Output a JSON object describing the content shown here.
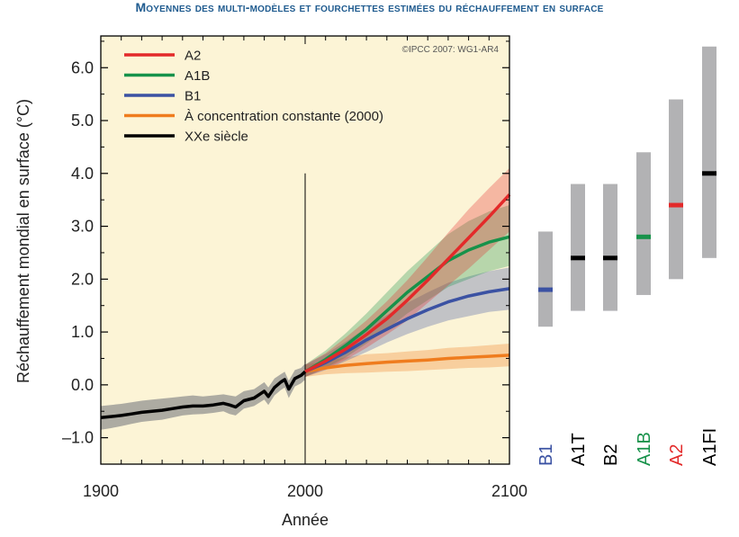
{
  "title": "Moyennes des multi-modèles et fourchettes estimées du réchauffement en surface",
  "copyright": "©IPCC 2007: WG1-AR4",
  "colors": {
    "panel_bg": "#fcf4d6",
    "a2": "#e32a2a",
    "a1b": "#17924a",
    "b1": "#3b52a3",
    "constant": "#ef7c1e",
    "century": "#000000",
    "range_bar": "#b2b2b4"
  },
  "chart_data": [
    {
      "type": "line",
      "title": "",
      "xlabel": "Année",
      "ylabel": "Réchauffement mondial en surface (°C)",
      "xlim": [
        1900,
        2100
      ],
      "ylim": [
        -1.5,
        6.6
      ],
      "xticks": [
        1900,
        2000,
        2100
      ],
      "yticks": [
        -1.0,
        0.0,
        1.0,
        2.0,
        3.0,
        4.0,
        5.0,
        6.0
      ],
      "ytick_labels": [
        "–1.0",
        "0.0",
        "1.0",
        "2.0",
        "3.0",
        "4.0",
        "5.0",
        "6.0"
      ],
      "grid": false,
      "legend_position": "top-left",
      "divider_year": 2000,
      "series": [
        {
          "name": "A2",
          "color": "#e32a2a",
          "x": [
            2000,
            2010,
            2020,
            2030,
            2040,
            2050,
            2060,
            2070,
            2080,
            2090,
            2100
          ],
          "y": [
            0.25,
            0.45,
            0.68,
            0.95,
            1.25,
            1.6,
            1.98,
            2.38,
            2.78,
            3.18,
            3.6
          ],
          "low": [
            0.15,
            0.3,
            0.48,
            0.7,
            0.95,
            1.22,
            1.55,
            1.88,
            2.2,
            2.55,
            2.9
          ],
          "high": [
            0.38,
            0.6,
            0.9,
            1.22,
            1.58,
            1.98,
            2.42,
            2.88,
            3.32,
            3.72,
            4.1
          ]
        },
        {
          "name": "A1B",
          "color": "#17924a",
          "x": [
            2000,
            2010,
            2020,
            2030,
            2040,
            2050,
            2060,
            2070,
            2080,
            2090,
            2100
          ],
          "y": [
            0.25,
            0.48,
            0.75,
            1.05,
            1.4,
            1.75,
            2.05,
            2.35,
            2.55,
            2.7,
            2.8
          ],
          "low": [
            0.15,
            0.32,
            0.52,
            0.78,
            1.05,
            1.35,
            1.6,
            1.85,
            2.0,
            2.15,
            2.25
          ],
          "high": [
            0.38,
            0.65,
            0.98,
            1.35,
            1.75,
            2.15,
            2.5,
            2.85,
            3.1,
            3.28,
            3.4
          ]
        },
        {
          "name": "B1",
          "color": "#3b52a3",
          "x": [
            2000,
            2010,
            2020,
            2030,
            2040,
            2050,
            2060,
            2070,
            2080,
            2090,
            2100
          ],
          "y": [
            0.25,
            0.42,
            0.62,
            0.85,
            1.05,
            1.25,
            1.42,
            1.57,
            1.68,
            1.76,
            1.82
          ],
          "low": [
            0.15,
            0.28,
            0.45,
            0.62,
            0.8,
            0.96,
            1.1,
            1.22,
            1.3,
            1.38,
            1.42
          ],
          "high": [
            0.38,
            0.58,
            0.82,
            1.08,
            1.32,
            1.55,
            1.75,
            1.93,
            2.05,
            2.15,
            2.22
          ]
        },
        {
          "name": "À concentration constante (2000)",
          "color": "#ef7c1e",
          "x": [
            2000,
            2010,
            2020,
            2030,
            2040,
            2050,
            2060,
            2070,
            2080,
            2090,
            2100
          ],
          "y": [
            0.25,
            0.32,
            0.37,
            0.4,
            0.43,
            0.45,
            0.47,
            0.5,
            0.52,
            0.54,
            0.56
          ],
          "low": [
            0.15,
            0.2,
            0.22,
            0.23,
            0.25,
            0.26,
            0.28,
            0.3,
            0.32,
            0.33,
            0.35
          ],
          "high": [
            0.38,
            0.45,
            0.52,
            0.58,
            0.6,
            0.63,
            0.66,
            0.7,
            0.72,
            0.75,
            0.78
          ]
        },
        {
          "name": "XXe siècle",
          "color": "#000000",
          "x": [
            1900,
            1905,
            1910,
            1915,
            1920,
            1925,
            1930,
            1935,
            1940,
            1945,
            1950,
            1955,
            1960,
            1963,
            1966,
            1970,
            1975,
            1980,
            1982,
            1985,
            1988,
            1990,
            1992,
            1995,
            1998,
            2000
          ],
          "y": [
            -0.62,
            -0.6,
            -0.58,
            -0.55,
            -0.52,
            -0.5,
            -0.48,
            -0.45,
            -0.42,
            -0.4,
            -0.4,
            -0.38,
            -0.35,
            -0.38,
            -0.42,
            -0.3,
            -0.25,
            -0.12,
            -0.22,
            -0.05,
            0.05,
            0.1,
            -0.08,
            0.12,
            0.18,
            0.25
          ],
          "low": [
            -0.85,
            -0.82,
            -0.78,
            -0.74,
            -0.7,
            -0.68,
            -0.66,
            -0.62,
            -0.58,
            -0.56,
            -0.55,
            -0.53,
            -0.5,
            -0.55,
            -0.58,
            -0.45,
            -0.4,
            -0.28,
            -0.38,
            -0.2,
            -0.1,
            -0.05,
            -0.25,
            -0.03,
            0.03,
            0.1
          ],
          "high": [
            -0.4,
            -0.38,
            -0.36,
            -0.33,
            -0.3,
            -0.28,
            -0.26,
            -0.24,
            -0.22,
            -0.2,
            -0.22,
            -0.2,
            -0.18,
            -0.2,
            -0.22,
            -0.12,
            -0.08,
            0.05,
            -0.05,
            0.12,
            0.2,
            0.25,
            0.08,
            0.28,
            0.32,
            0.4
          ]
        }
      ]
    },
    {
      "type": "bar",
      "title": "",
      "description_free": true,
      "categories": [
        "B1",
        "A1T",
        "B2",
        "A1B",
        "A2",
        "A1FI"
      ],
      "label_colors": [
        "#3b52a3",
        "#000000",
        "#000000",
        "#17924a",
        "#e32a2a",
        "#000000"
      ],
      "best_estimate": [
        1.8,
        2.4,
        2.4,
        2.8,
        3.4,
        4.0
      ],
      "range_low": [
        1.1,
        1.4,
        1.4,
        1.7,
        2.0,
        2.4
      ],
      "range_high": [
        2.9,
        3.8,
        3.8,
        4.4,
        5.4,
        6.4
      ],
      "marker_colors": [
        "#3b52a3",
        "#000000",
        "#000000",
        "#17924a",
        "#e32a2a",
        "#000000"
      ]
    }
  ]
}
